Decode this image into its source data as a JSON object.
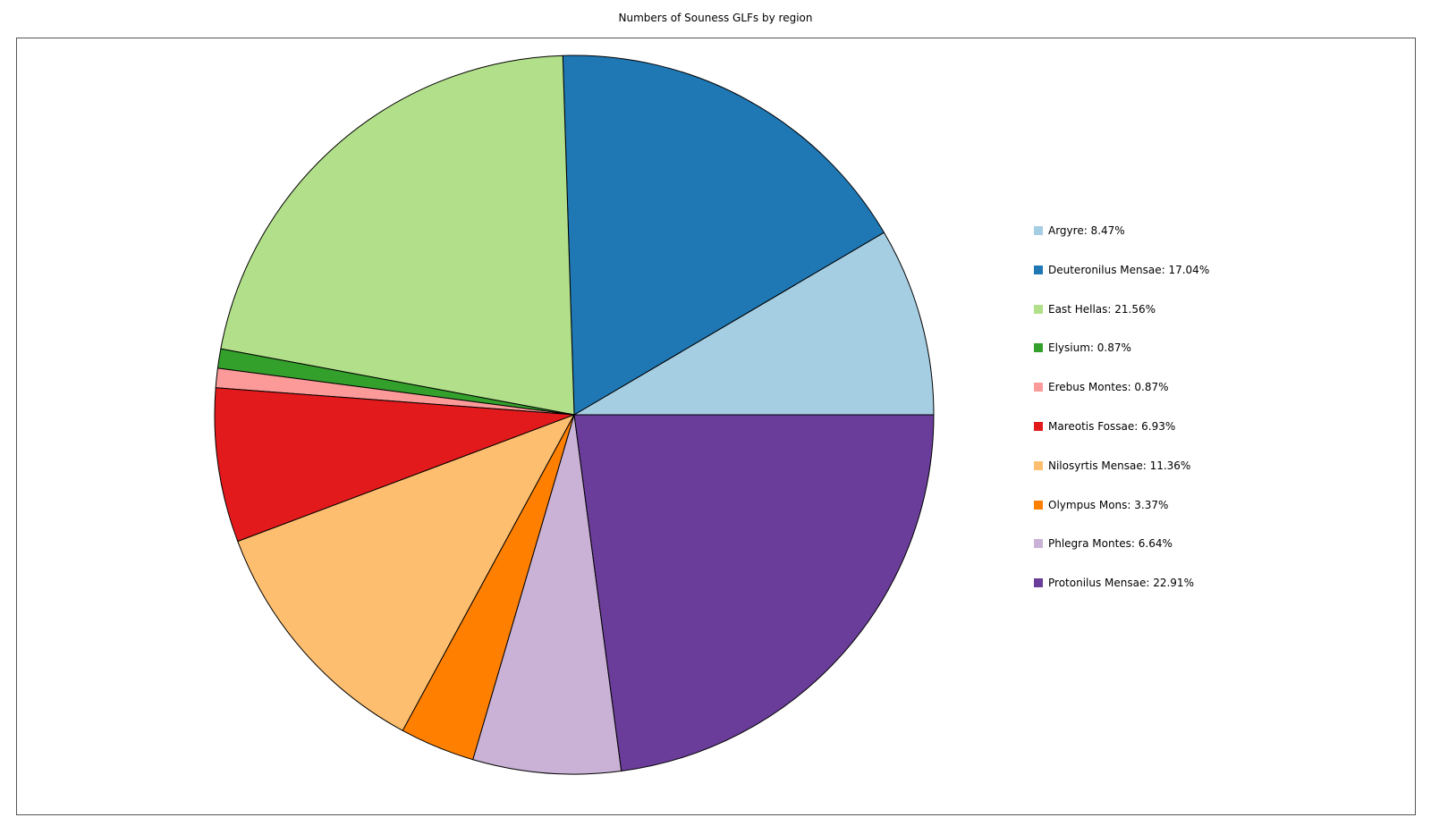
{
  "chart_data": {
    "type": "pie",
    "title": "Numbers of Souness GLFs by region",
    "start_angle_deg": 0,
    "direction": "counterclockwise",
    "legend_position": "right",
    "slices": [
      {
        "label": "Argyre",
        "value": 8.47,
        "legend": "Argyre: 8.47%",
        "color": "#a6cee3"
      },
      {
        "label": "Deuteronilus Mensae",
        "value": 17.04,
        "legend": "Deuteronilus Mensae: 17.04%",
        "color": "#1f78b4"
      },
      {
        "label": "East Hellas",
        "value": 21.56,
        "legend": "East Hellas: 21.56%",
        "color": "#b2df8a"
      },
      {
        "label": "Elysium",
        "value": 0.87,
        "legend": "Elysium: 0.87%",
        "color": "#33a02c"
      },
      {
        "label": "Erebus Montes",
        "value": 0.87,
        "legend": "Erebus Montes: 0.87%",
        "color": "#fb9a99"
      },
      {
        "label": "Mareotis Fossae",
        "value": 6.93,
        "legend": "Mareotis Fossae: 6.93%",
        "color": "#e31a1c"
      },
      {
        "label": "Nilosyrtis Mensae",
        "value": 11.36,
        "legend": "Nilosyrtis Mensae: 11.36%",
        "color": "#fdbf6f"
      },
      {
        "label": "Olympus Mons",
        "value": 3.37,
        "legend": "Olympus Mons: 3.37%",
        "color": "#ff7f00"
      },
      {
        "label": "Phlegra Montes",
        "value": 6.64,
        "legend": "Phlegra Montes: 6.64%",
        "color": "#cab2d6"
      },
      {
        "label": "Protonilus Mensae",
        "value": 22.91,
        "legend": "Protonilus Mensae: 22.91%",
        "color": "#6a3d9a"
      }
    ]
  }
}
